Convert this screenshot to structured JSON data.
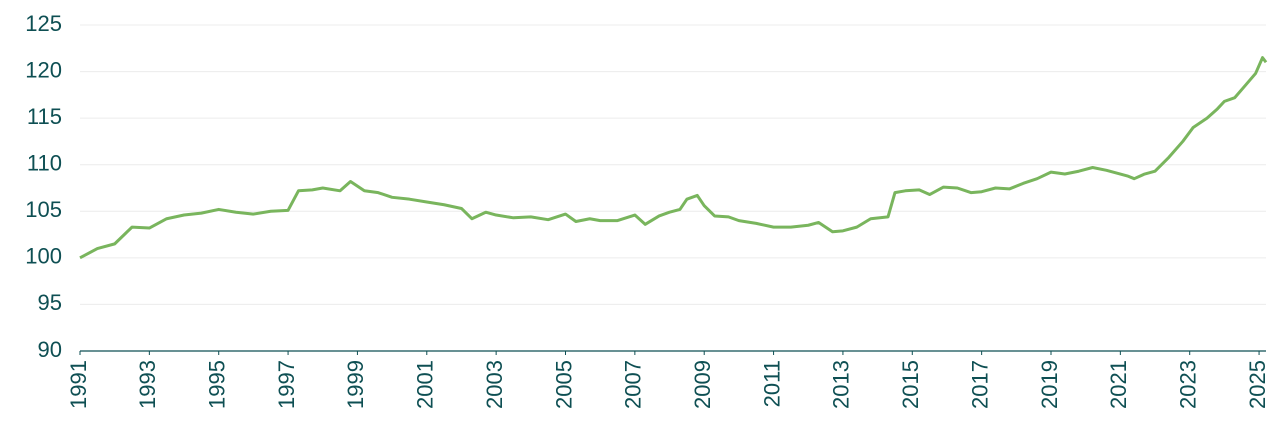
{
  "chart_data": {
    "type": "line",
    "x": [
      1991.0,
      1991.5,
      1992.0,
      1992.5,
      1993.0,
      1993.5,
      1994.0,
      1994.5,
      1995.0,
      1995.5,
      1996.0,
      1996.5,
      1997.0,
      1997.3,
      1997.7,
      1998.0,
      1998.5,
      1998.8,
      1999.2,
      1999.6,
      2000.0,
      2000.5,
      2001.0,
      2001.5,
      2002.0,
      2002.3,
      2002.7,
      2003.0,
      2003.5,
      2004.0,
      2004.5,
      2005.0,
      2005.3,
      2005.7,
      2006.0,
      2006.5,
      2007.0,
      2007.3,
      2007.7,
      2008.0,
      2008.3,
      2008.5,
      2008.8,
      2009.0,
      2009.3,
      2009.7,
      2010.0,
      2010.5,
      2011.0,
      2011.5,
      2012.0,
      2012.3,
      2012.7,
      2013.0,
      2013.4,
      2013.8,
      2014.3,
      2014.5,
      2014.8,
      2015.2,
      2015.5,
      2015.9,
      2016.3,
      2016.7,
      2017.0,
      2017.4,
      2017.8,
      2018.2,
      2018.6,
      2019.0,
      2019.4,
      2019.8,
      2020.2,
      2020.6,
      2021.0,
      2021.2,
      2021.4,
      2021.7,
      2022.0,
      2022.4,
      2022.8,
      2023.1,
      2023.5,
      2023.8,
      2024.0,
      2024.3,
      2024.6,
      2024.9,
      2025.1,
      2025.2
    ],
    "series": [
      {
        "color": "#79b55d",
        "values": [
          100,
          101,
          101.5,
          103.3,
          103.2,
          104.2,
          104.6,
          104.8,
          105.2,
          104.9,
          104.7,
          105.0,
          105.1,
          107.2,
          107.3,
          107.5,
          107.2,
          108.2,
          107.2,
          107.0,
          106.5,
          106.3,
          106.0,
          105.7,
          105.3,
          104.2,
          104.9,
          104.6,
          104.3,
          104.4,
          104.1,
          104.7,
          103.9,
          104.2,
          104.0,
          104.0,
          104.6,
          103.6,
          104.5,
          104.9,
          105.2,
          106.3,
          106.7,
          105.6,
          104.5,
          104.4,
          104.0,
          103.7,
          103.3,
          103.3,
          103.5,
          103.8,
          102.8,
          102.9,
          103.3,
          104.2,
          104.4,
          107.0,
          107.2,
          107.3,
          106.8,
          107.6,
          107.5,
          107.0,
          107.1,
          107.5,
          107.4,
          108.0,
          108.5,
          109.2,
          109.0,
          109.3,
          109.7,
          109.4,
          109.0,
          108.8,
          108.5,
          109.0,
          109.3,
          110.8,
          112.5,
          114.0,
          115.0,
          116.0,
          116.8,
          117.2,
          118.5,
          119.8,
          121.5,
          121.0
        ]
      }
    ],
    "xlim": [
      1991,
      2025.2
    ],
    "xticks": [
      1991,
      1993,
      1995,
      1997,
      1999,
      2001,
      2003,
      2005,
      2007,
      2009,
      2011,
      2013,
      2015,
      2017,
      2019,
      2021,
      2023,
      2025
    ],
    "ylim": [
      90,
      125
    ],
    "yticks": [
      90,
      95,
      100,
      105,
      110,
      115,
      120,
      125
    ],
    "grid": true
  }
}
